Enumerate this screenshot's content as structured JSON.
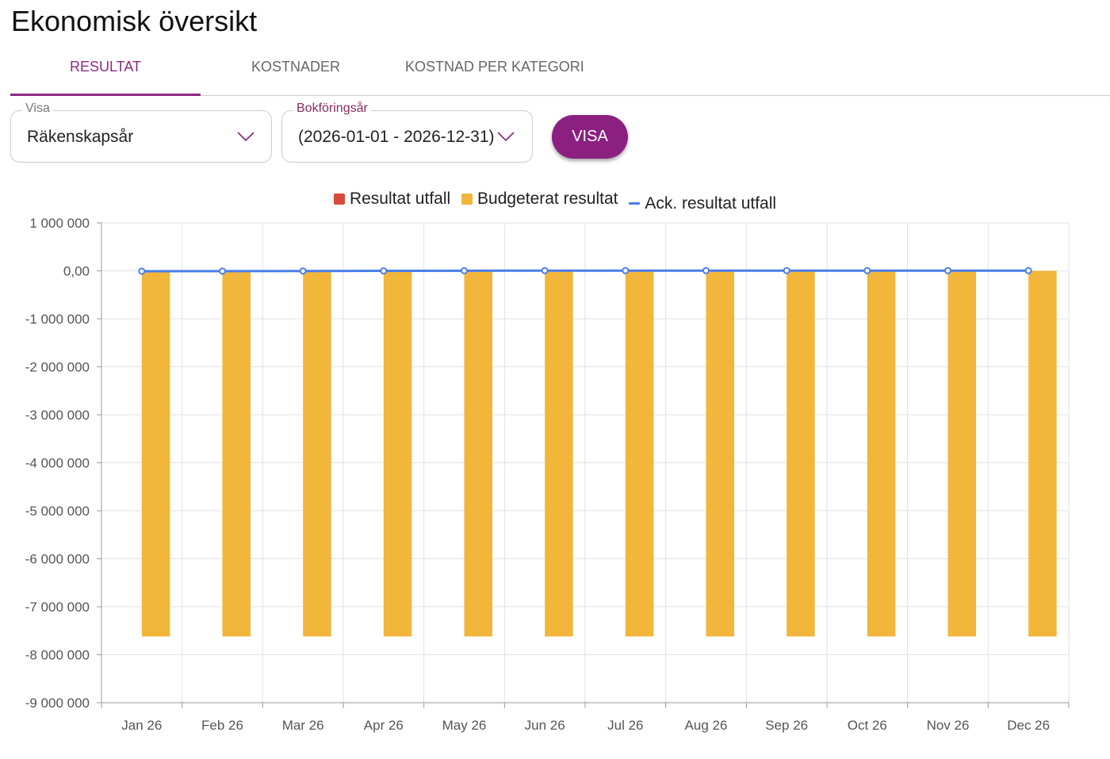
{
  "header": {
    "title": "Ekonomisk översikt"
  },
  "tabs": [
    {
      "label": "RESULTAT"
    },
    {
      "label": "KOSTNADER"
    },
    {
      "label": "KOSTNAD PER KATEGORI"
    }
  ],
  "filters": {
    "visa": {
      "label": "Visa",
      "value": "Räkenskapsår"
    },
    "bokforingsar": {
      "label": "Bokföringsår",
      "value": "(2026-01-01 - 2026-12-31)"
    },
    "button": "VISA"
  },
  "colors": {
    "accent": "#8b2080",
    "resultat": "#dc4a3a",
    "budget": "#f2b63b",
    "ack": "#4a7ee8"
  },
  "chart_data": {
    "type": "bar",
    "categories": [
      "Jan 26",
      "Feb 26",
      "Mar 26",
      "Apr 26",
      "May 26",
      "Jun 26",
      "Jul 26",
      "Aug 26",
      "Sep 26",
      "Oct 26",
      "Nov 26",
      "Dec 26"
    ],
    "series": [
      {
        "name": "Resultat utfall",
        "type": "bar",
        "values": [
          0,
          0,
          0,
          0,
          0,
          0,
          0,
          0,
          0,
          0,
          0,
          0
        ]
      },
      {
        "name": "Budgeterat resultat",
        "type": "bar",
        "values": [
          -7620000,
          -7620000,
          -7620000,
          -7620000,
          -7620000,
          -7620000,
          -7620000,
          -7620000,
          -7620000,
          -7620000,
          -7620000,
          -7620000
        ]
      },
      {
        "name": "Ack. resultat utfall",
        "type": "line",
        "values": [
          -8000,
          -6000,
          -4000,
          -1000,
          3000,
          5000,
          5000,
          5000,
          5000,
          5000,
          5000,
          5000
        ]
      }
    ],
    "ylim": [
      -9000000,
      1000000
    ],
    "yticks": [
      1000000,
      0,
      -1000000,
      -2000000,
      -3000000,
      -4000000,
      -5000000,
      -6000000,
      -7000000,
      -8000000,
      -9000000
    ],
    "ytick_labels": [
      "1 000 000",
      "0,00",
      "-1 000 000",
      "-2 000 000",
      "-3 000 000",
      "-4 000 000",
      "-5 000 000",
      "-6 000 000",
      "-7 000 000",
      "-8 000 000",
      "-9 000 000"
    ],
    "legend": "top"
  }
}
